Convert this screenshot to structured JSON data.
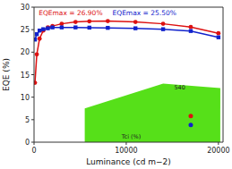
{
  "chart_data": {
    "type": "line",
    "xlabel": "Luminance (cd m−2)",
    "ylabel": "EQE (%)",
    "x": [
      100,
      300,
      600,
      1000,
      1500,
      2000,
      3000,
      4500,
      6000,
      8000,
      11000,
      14000,
      17000,
      20000
    ],
    "series": [
      {
        "color": "#dd1111",
        "marker": "circle",
        "line_style": "solid",
        "values": [
          13.2,
          19.5,
          23.0,
          24.8,
          25.5,
          25.8,
          26.3,
          26.7,
          26.85,
          26.9,
          26.7,
          26.3,
          25.6,
          24.2
        ]
      },
      {
        "color": "#1122cc",
        "marker": "square",
        "line_style": "solid",
        "values": [
          22.8,
          24.0,
          24.8,
          25.1,
          25.3,
          25.5,
          25.5,
          25.5,
          25.45,
          25.4,
          25.3,
          25.1,
          24.7,
          23.3
        ]
      }
    ],
    "xlim": [
      0,
      20500
    ],
    "ylim": [
      0,
      30
    ],
    "xticks": [
      0,
      10000,
      20000
    ],
    "yticks": [
      0,
      5,
      10,
      15,
      20,
      25,
      30
    ],
    "grid": false,
    "annotations": [
      {
        "text": "EQEmax = 26.90%",
        "x": 500,
        "y": 28.2,
        "color": "#dd1111"
      },
      {
        "text": "EQEmax = 25.50%",
        "x": 8500,
        "y": 28.2,
        "color": "#1122cc"
      },
      {
        "text": "540",
        "x": 15200,
        "y": 11.8,
        "color": "#222222"
      },
      {
        "text": "Tci (%)",
        "x": 9500,
        "y": 0.8,
        "color": "#222222"
      }
    ],
    "inset": {
      "x": [
        5500,
        20200,
        20200,
        14000,
        5500
      ],
      "y": [
        0.0,
        0.0,
        12.0,
        13.0,
        7.5
      ],
      "color": "#44dd00",
      "points": [
        {
          "x": 17000,
          "y": 5.8,
          "color": "#dd1111"
        },
        {
          "x": 17000,
          "y": 3.8,
          "color": "#1122cc"
        }
      ]
    }
  }
}
